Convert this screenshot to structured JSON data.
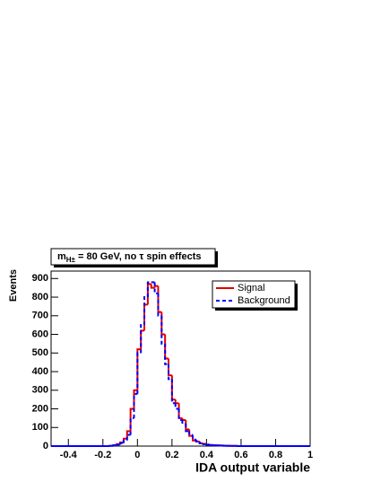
{
  "chart_data": {
    "type": "histogram",
    "title": [
      "m",
      "H±",
      " = 80 GeV, no τ spin effects"
    ],
    "x_label": "IDA output variable",
    "y_label": "Events",
    "bins": [
      -0.5,
      -0.48,
      -0.46,
      -0.44,
      -0.42,
      -0.4,
      -0.38,
      -0.36,
      -0.34,
      -0.32,
      -0.3,
      -0.28,
      -0.26,
      -0.24,
      -0.22,
      -0.2,
      -0.18,
      -0.16,
      -0.14,
      -0.12,
      -0.1,
      -0.08,
      -0.06,
      -0.04,
      -0.02,
      0,
      0.02,
      0.04,
      0.06,
      0.08,
      0.1,
      0.12,
      0.14,
      0.16,
      0.18,
      0.2,
      0.22,
      0.24,
      0.26,
      0.28,
      0.3,
      0.32,
      0.34,
      0.36,
      0.38,
      0.4,
      0.42,
      0.44,
      0.46,
      0.48,
      0.5,
      0.52,
      0.54,
      0.56,
      0.58,
      0.6,
      0.62,
      0.64,
      0.66,
      0.68,
      0.7,
      0.72,
      0.74,
      0.76,
      0.78,
      0.8,
      0.82,
      0.84,
      0.86,
      0.88,
      0.9,
      0.92,
      0.94,
      0.96,
      0.98,
      1
    ],
    "series": [
      {
        "name": "Signal",
        "color": "#e00000",
        "dashed": false,
        "values": [
          0,
          0,
          0,
          0,
          0,
          0,
          0,
          0,
          0,
          0,
          0,
          0,
          0,
          0,
          0,
          0,
          0,
          2,
          5,
          10,
          20,
          40,
          80,
          200,
          300,
          520,
          620,
          760,
          870,
          850,
          860,
          720,
          600,
          470,
          380,
          250,
          230,
          150,
          140,
          90,
          55,
          30,
          25,
          15,
          12,
          8,
          6,
          5,
          4,
          3,
          2,
          2,
          1,
          1,
          0,
          0,
          0,
          0,
          0,
          0,
          0,
          0,
          0,
          0,
          0,
          0,
          0,
          0,
          0,
          0,
          0,
          0,
          0,
          0,
          0
        ]
      },
      {
        "name": "Background",
        "color": "#0000ff",
        "dashed": true,
        "values": [
          0,
          0,
          0,
          0,
          0,
          0,
          0,
          0,
          0,
          0,
          0,
          0,
          0,
          0,
          0,
          0,
          0,
          1,
          4,
          8,
          15,
          30,
          60,
          150,
          280,
          500,
          650,
          800,
          880,
          880,
          820,
          700,
          550,
          440,
          360,
          230,
          200,
          140,
          120,
          80,
          60,
          35,
          25,
          15,
          10,
          8,
          5,
          4,
          3,
          3,
          2,
          1,
          1,
          1,
          0,
          0,
          0,
          0,
          0,
          0,
          0,
          0,
          0,
          0,
          0,
          0,
          0,
          0,
          0,
          0,
          0,
          0,
          0,
          0,
          0
        ]
      }
    ],
    "xlim": [
      -0.5,
      1
    ],
    "ylim": [
      0,
      940
    ],
    "xticks": [
      -0.4,
      -0.2,
      0,
      0.2,
      0.4,
      0.6,
      0.8,
      1
    ],
    "yticks": [
      0,
      100,
      200,
      300,
      400,
      500,
      600,
      700,
      800,
      900
    ],
    "legend": "top-right"
  }
}
